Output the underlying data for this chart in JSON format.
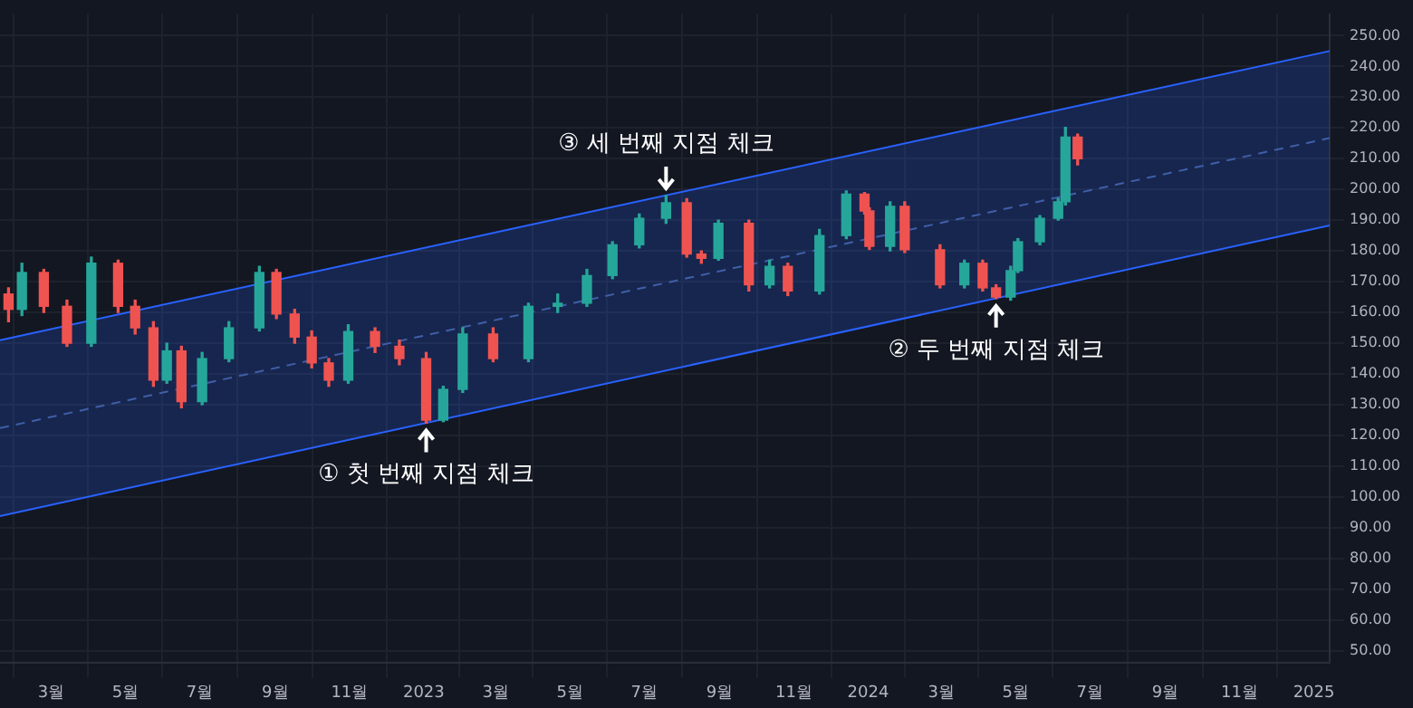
{
  "chart_data": {
    "type": "candlestick",
    "x": [
      "2022-01-25",
      "2022-02-05",
      "2022-02-23",
      "2022-03-14",
      "2022-04-03",
      "2022-04-25",
      "2022-05-09",
      "2022-05-24",
      "2022-06-04",
      "2022-06-16",
      "2022-07-03",
      "2022-07-25",
      "2022-08-19",
      "2022-09-02",
      "2022-09-17",
      "2022-10-01",
      "2022-10-15",
      "2022-10-31",
      "2022-11-22",
      "2022-12-12",
      "2023-01-03",
      "2023-01-17",
      "2023-02-02",
      "2023-02-27",
      "2023-03-28",
      "2023-04-21",
      "2023-05-15",
      "2023-06-05",
      "2023-06-27",
      "2023-07-19",
      "2023-08-05",
      "2023-08-17",
      "2023-08-31",
      "2023-09-25",
      "2023-10-12",
      "2023-10-27",
      "2023-11-22",
      "2023-12-14",
      "2023-12-29",
      "2024-01-02",
      "2024-01-19",
      "2024-01-31",
      "2024-02-29",
      "2024-03-20",
      "2024-04-04",
      "2024-04-15",
      "2024-04-27",
      "2024-05-03",
      "2024-05-21",
      "2024-06-05",
      "2024-06-11",
      "2024-06-21"
    ],
    "ohlc": [
      [
        166,
        168,
        157,
        161
      ],
      [
        161,
        176,
        159,
        173
      ],
      [
        173,
        174,
        160,
        162
      ],
      [
        162,
        164,
        149,
        150
      ],
      [
        150,
        178,
        149,
        176
      ],
      [
        176,
        177,
        160,
        162
      ],
      [
        162,
        164,
        153,
        155
      ],
      [
        155,
        157,
        136,
        138
      ],
      [
        138,
        150,
        137,
        147.5
      ],
      [
        147.5,
        149,
        129,
        131
      ],
      [
        131,
        147,
        130,
        145
      ],
      [
        145,
        157,
        144,
        155
      ],
      [
        155,
        175,
        154,
        173
      ],
      [
        173,
        174,
        158,
        159.5
      ],
      [
        159.5,
        161,
        150,
        152
      ],
      [
        152,
        154,
        142,
        143.6
      ],
      [
        143.6,
        145,
        136,
        138
      ],
      [
        138,
        156,
        137,
        153.8
      ],
      [
        153.8,
        155,
        147,
        149
      ],
      [
        149,
        151,
        143,
        145
      ],
      [
        145,
        147,
        124,
        125
      ],
      [
        125,
        136,
        124.5,
        135
      ],
      [
        135,
        155,
        134,
        153
      ],
      [
        153,
        155,
        144,
        145
      ],
      [
        145,
        163,
        144,
        162
      ],
      [
        162,
        166,
        160,
        163
      ],
      [
        163,
        174,
        162,
        172
      ],
      [
        172,
        183,
        171,
        182
      ],
      [
        182,
        192,
        181,
        190.6
      ],
      [
        190.6,
        198,
        189,
        195.7
      ],
      [
        195.7,
        197,
        178,
        179
      ],
      [
        179,
        180,
        176,
        177.6
      ],
      [
        177.6,
        190,
        177,
        189
      ],
      [
        189,
        190,
        167,
        169
      ],
      [
        169,
        177,
        168,
        175
      ],
      [
        175,
        176,
        165.5,
        167
      ],
      [
        167,
        187,
        166,
        185
      ],
      [
        185,
        199.5,
        184,
        198.5
      ],
      [
        198.5,
        199,
        192,
        193
      ],
      [
        193,
        194,
        180.5,
        181.5
      ],
      [
        181.5,
        196,
        180,
        194.5
      ],
      [
        194.5,
        196,
        179.5,
        180.4
      ],
      [
        180.4,
        182,
        168,
        169
      ],
      [
        169,
        177,
        168,
        176
      ],
      [
        176,
        177,
        167,
        168
      ],
      [
        168,
        169,
        164.5,
        165
      ],
      [
        165,
        175,
        164,
        173.6
      ],
      [
        173.6,
        184,
        173,
        183
      ],
      [
        183,
        191.5,
        182,
        190.6
      ],
      [
        190.6,
        197,
        190,
        196
      ],
      [
        196,
        220.2,
        195,
        217
      ],
      [
        217,
        218,
        208,
        210
      ]
    ],
    "colors": [
      "#ef5350",
      "#26a69a",
      "#ef5350",
      "#ef5350",
      "#26a69a",
      "#ef5350",
      "#ef5350",
      "#ef5350",
      "#26a69a",
      "#ef5350",
      "#26a69a",
      "#26a69a",
      "#26a69a",
      "#ef5350",
      "#ef5350",
      "#ef5350",
      "#ef5350",
      "#26a69a",
      "#ef5350",
      "#ef5350",
      "#ef5350",
      "#26a69a",
      "#26a69a",
      "#ef5350",
      "#26a69a",
      "#26a69a",
      "#26a69a",
      "#26a69a",
      "#26a69a",
      "#26a69a",
      "#ef5350",
      "#ef5350",
      "#26a69a",
      "#ef5350",
      "#26a69a",
      "#ef5350",
      "#26a69a",
      "#26a69a",
      "#ef5350",
      "#ef5350",
      "#26a69a",
      "#ef5350",
      "#ef5350",
      "#26a69a",
      "#ef5350",
      "#ef5350",
      "#26a69a",
      "#26a69a",
      "#26a69a",
      "#26a69a",
      "#26a69a",
      "#ef5350"
    ],
    "series": [
      {
        "type": "line",
        "x": [
          "2022-01-18",
          "2025-01-14"
        ],
        "values": [
          151,
          245
        ],
        "color": "#2962ff",
        "line_style": "solid"
      },
      {
        "type": "line",
        "x": [
          "2022-01-18",
          "2025-01-14"
        ],
        "values": [
          122.4,
          216.7
        ],
        "lower": [
          93.8,
          188.3
        ],
        "upper": [
          151,
          245
        ],
        "color": "#3f5fa8",
        "line_style": "dashed"
      },
      {
        "type": "line",
        "x": [
          "2022-01-18",
          "2025-01-14"
        ],
        "values": [
          93.8,
          188.3
        ],
        "color": "#2962ff",
        "line_style": "solid"
      }
    ],
    "annotations": [
      {
        "text": "① 첫 번째 지점 체크",
        "x": "2023-01-03",
        "y": 124
      },
      {
        "text": "② 두 번째 지점 체크",
        "x": "2024-04-15",
        "y": 164.5
      },
      {
        "text": "③ 세 번째 지점 체크",
        "x": "2023-07-19",
        "y": 198
      }
    ],
    "xlim": [
      "2022-01-18",
      "2025-01-14"
    ],
    "xticks": [
      {
        "value": "2022-03-01",
        "label": "3월"
      },
      {
        "value": "2022-05-01",
        "label": "5월"
      },
      {
        "value": "2022-07-01",
        "label": "7월"
      },
      {
        "value": "2022-09-01",
        "label": "9월"
      },
      {
        "value": "2022-11-01",
        "label": "11월"
      },
      {
        "value": "2023-01-01",
        "label": "2023"
      },
      {
        "value": "2023-03-01",
        "label": "3월"
      },
      {
        "value": "2023-05-01",
        "label": "5월"
      },
      {
        "value": "2023-07-01",
        "label": "7월"
      },
      {
        "value": "2023-09-01",
        "label": "9월"
      },
      {
        "value": "2023-11-01",
        "label": "11월"
      },
      {
        "value": "2024-01-01",
        "label": "2024"
      },
      {
        "value": "2024-03-01",
        "label": "3월"
      },
      {
        "value": "2024-05-01",
        "label": "5월"
      },
      {
        "value": "2024-07-01",
        "label": "7월"
      },
      {
        "value": "2024-09-01",
        "label": "9월"
      },
      {
        "value": "2024-11-01",
        "label": "11월"
      },
      {
        "value": "2025-01-01",
        "label": "2025"
      }
    ],
    "ylim": [
      46,
      257
    ],
    "yticks": [
      {
        "value": 50,
        "label": "50.00"
      },
      {
        "value": 60,
        "label": "60.00"
      },
      {
        "value": 70,
        "label": "70.00"
      },
      {
        "value": 80,
        "label": "80.00"
      },
      {
        "value": 90,
        "label": "90.00"
      },
      {
        "value": 100,
        "label": "100.00"
      },
      {
        "value": 110,
        "label": "110.00"
      },
      {
        "value": 120,
        "label": "120.00"
      },
      {
        "value": 130,
        "label": "130.00"
      },
      {
        "value": 140,
        "label": "140.00"
      },
      {
        "value": 150,
        "label": "150.00"
      },
      {
        "value": 160,
        "label": "160.00"
      },
      {
        "value": 170,
        "label": "170.00"
      },
      {
        "value": 180,
        "label": "180.00"
      },
      {
        "value": 190,
        "label": "190.00"
      },
      {
        "value": 200,
        "label": "200.00"
      },
      {
        "value": 210,
        "label": "210.00"
      },
      {
        "value": 220,
        "label": "220.00"
      },
      {
        "value": 230,
        "label": "230.00"
      },
      {
        "value": 240,
        "label": "240.00"
      },
      {
        "value": 250,
        "label": "250.00"
      }
    ],
    "grid": true,
    "legend": false
  }
}
